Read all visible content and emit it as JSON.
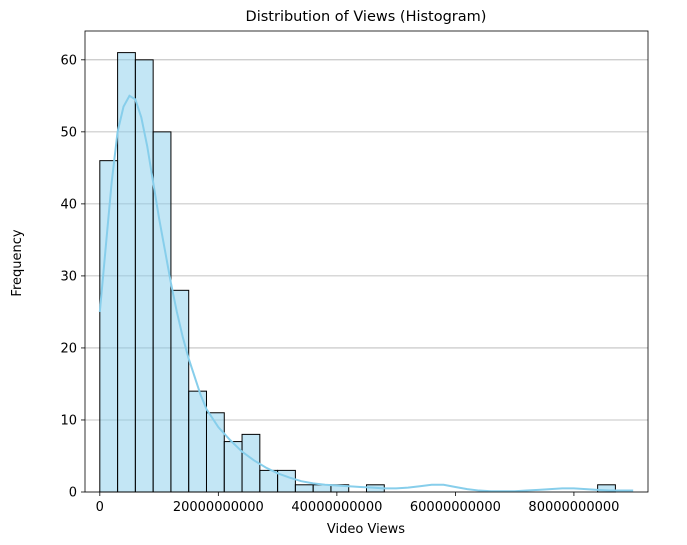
{
  "chart_data": {
    "type": "bar",
    "subtype": "histogram",
    "title": "Distribution of Views (Histogram)",
    "xlabel": "Video Views",
    "ylabel": "Frequency",
    "xlim": [
      -2500000000,
      92500000000
    ],
    "ylim": [
      0,
      64
    ],
    "xticks": [
      0,
      20000000000,
      40000000000,
      60000000000,
      80000000000
    ],
    "xtick_labels": [
      "0",
      "20000000000",
      "40000000000",
      "60000000000",
      "80000000000"
    ],
    "yticks": [
      0,
      10,
      20,
      30,
      40,
      50,
      60
    ],
    "ytick_labels": [
      "0",
      "10",
      "20",
      "30",
      "40",
      "50",
      "60"
    ],
    "grid": "y",
    "bin_start": 0,
    "bin_width": 3000000000,
    "counts": [
      46,
      61,
      60,
      50,
      28,
      14,
      11,
      7,
      8,
      3,
      3,
      1,
      1,
      1,
      0,
      1,
      0,
      0,
      0,
      0,
      0,
      0,
      0,
      0,
      0,
      0,
      0,
      0,
      1,
      0
    ],
    "kde": {
      "x": [
        0,
        1000000000,
        2000000000,
        3000000000,
        4000000000,
        5000000000,
        6000000000,
        7000000000,
        8000000000,
        9000000000,
        10000000000,
        11000000000,
        12000000000,
        13000000000,
        14000000000,
        15000000000,
        16000000000,
        17000000000,
        18000000000,
        20000000000,
        22000000000,
        24000000000,
        26000000000,
        28000000000,
        30000000000,
        32000000000,
        34000000000,
        36000000000,
        38000000000,
        40000000000,
        42000000000,
        44000000000,
        46000000000,
        48000000000,
        50000000000,
        52000000000,
        54000000000,
        56000000000,
        58000000000,
        60000000000,
        62000000000,
        64000000000,
        66000000000,
        68000000000,
        70000000000,
        72000000000,
        74000000000,
        76000000000,
        78000000000,
        80000000000,
        82000000000,
        84000000000,
        86000000000,
        88000000000,
        90000000000
      ],
      "y": [
        25,
        34,
        43,
        50,
        53.5,
        55,
        54.5,
        52,
        48,
        43,
        38,
        33.5,
        29,
        25,
        21.5,
        18.5,
        16,
        13.5,
        11.5,
        9,
        7.2,
        5.6,
        4.4,
        3.4,
        2.6,
        2,
        1.5,
        1.2,
        1,
        0.9,
        0.8,
        0.7,
        0.6,
        0.5,
        0.5,
        0.6,
        0.8,
        1,
        1,
        0.7,
        0.4,
        0.2,
        0.1,
        0.1,
        0.1,
        0.2,
        0.3,
        0.4,
        0.5,
        0.5,
        0.4,
        0.3,
        0.2,
        0.2,
        0.2
      ]
    },
    "colors": {
      "bar_fill": "#87ceeb",
      "bar_opacity": 0.5,
      "bar_edge": "#000000",
      "kde_line": "#87ceeb",
      "grid": "#b0b0b0"
    }
  }
}
